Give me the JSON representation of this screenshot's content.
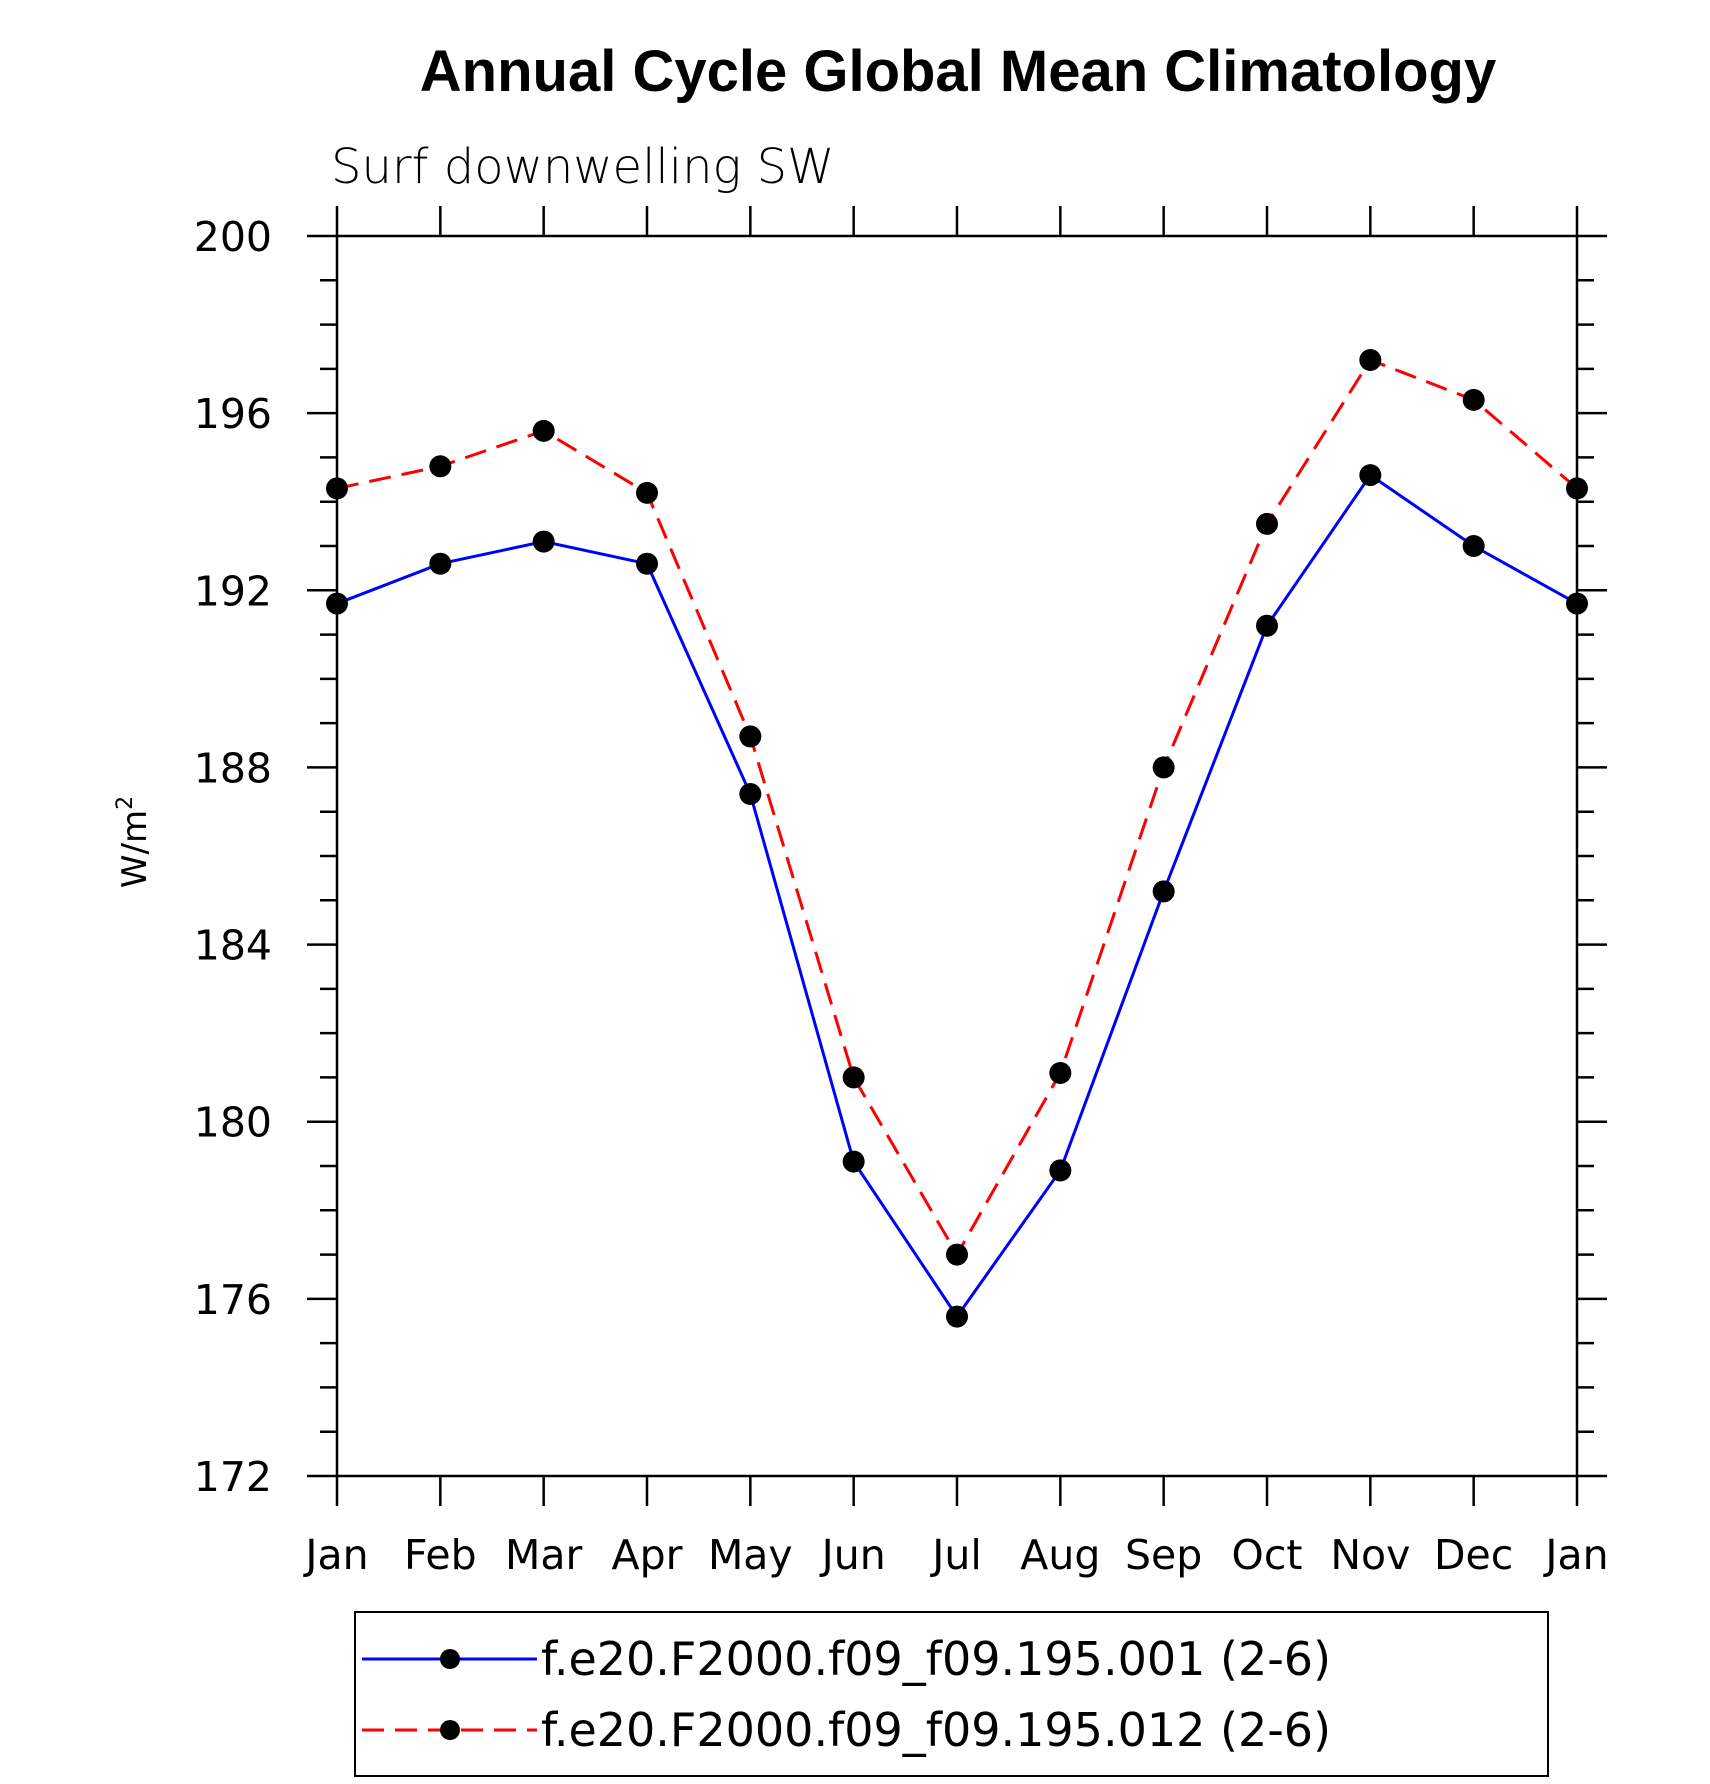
{
  "chart_data": {
    "type": "line",
    "title": "Annual Cycle Global Mean Climatology",
    "subtitle": "Surf downwelling SW",
    "xlabel": "",
    "ylabel": "W/m",
    "ylabel_superscript": "2",
    "categories": [
      "Jan",
      "Feb",
      "Mar",
      "Apr",
      "May",
      "Jun",
      "Jul",
      "Aug",
      "Sep",
      "Oct",
      "Nov",
      "Dec",
      "Jan"
    ],
    "ylim": [
      172,
      200
    ],
    "yticks": [
      172,
      176,
      180,
      184,
      188,
      192,
      196,
      200
    ],
    "series": [
      {
        "name": "f.e20.F2000.f09_f09.195.001 (2-6)",
        "color": "#0000ff",
        "line_style": "solid",
        "marker": "filled-circle",
        "values": [
          191.7,
          192.6,
          193.1,
          192.6,
          187.4,
          179.1,
          175.6,
          178.9,
          185.2,
          191.2,
          194.6,
          193.0,
          191.7
        ]
      },
      {
        "name": "f.e20.F2000.f09_f09.195.012 (2-6)",
        "color": "#ff0000",
        "line_style": "dashed",
        "marker": "filled-circle",
        "values": [
          194.3,
          194.8,
          195.6,
          194.2,
          188.7,
          181.0,
          177.0,
          181.1,
          188.0,
          193.5,
          197.2,
          196.3,
          194.3
        ]
      }
    ],
    "grid": false,
    "legend_position": "bottom"
  }
}
